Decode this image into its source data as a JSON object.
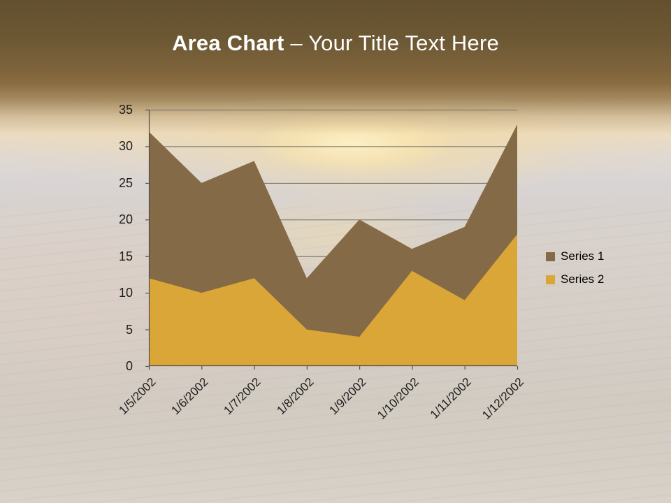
{
  "title": {
    "bold_part": "Area Chart",
    "separator": "–",
    "regular_part": "Your Title Text Here"
  },
  "chart_data": {
    "type": "area",
    "overlap": true,
    "categories": [
      "1/5/2002",
      "1/6/2002",
      "1/7/2002",
      "1/8/2002",
      "1/9/2002",
      "1/10/2002",
      "1/11/2002",
      "1/12/2002"
    ],
    "series": [
      {
        "name": "Series 1",
        "color": "#846a46",
        "values": [
          32,
          25,
          28,
          12,
          20,
          16,
          19,
          33
        ]
      },
      {
        "name": "Series 2",
        "color": "#d9a637",
        "values": [
          12,
          10,
          12,
          5,
          4,
          13,
          9,
          18
        ]
      }
    ],
    "ylim": [
      0,
      35
    ],
    "ytick_step": 5,
    "grid": true,
    "legend_position": "right"
  },
  "colors": {
    "gridline": "#6f6d69",
    "axis": "#55514b",
    "tick_label_text": "#1c1c1c",
    "legend_text": "#000000",
    "title_text": "#ffffff",
    "banner_brown": "#6b5531"
  }
}
